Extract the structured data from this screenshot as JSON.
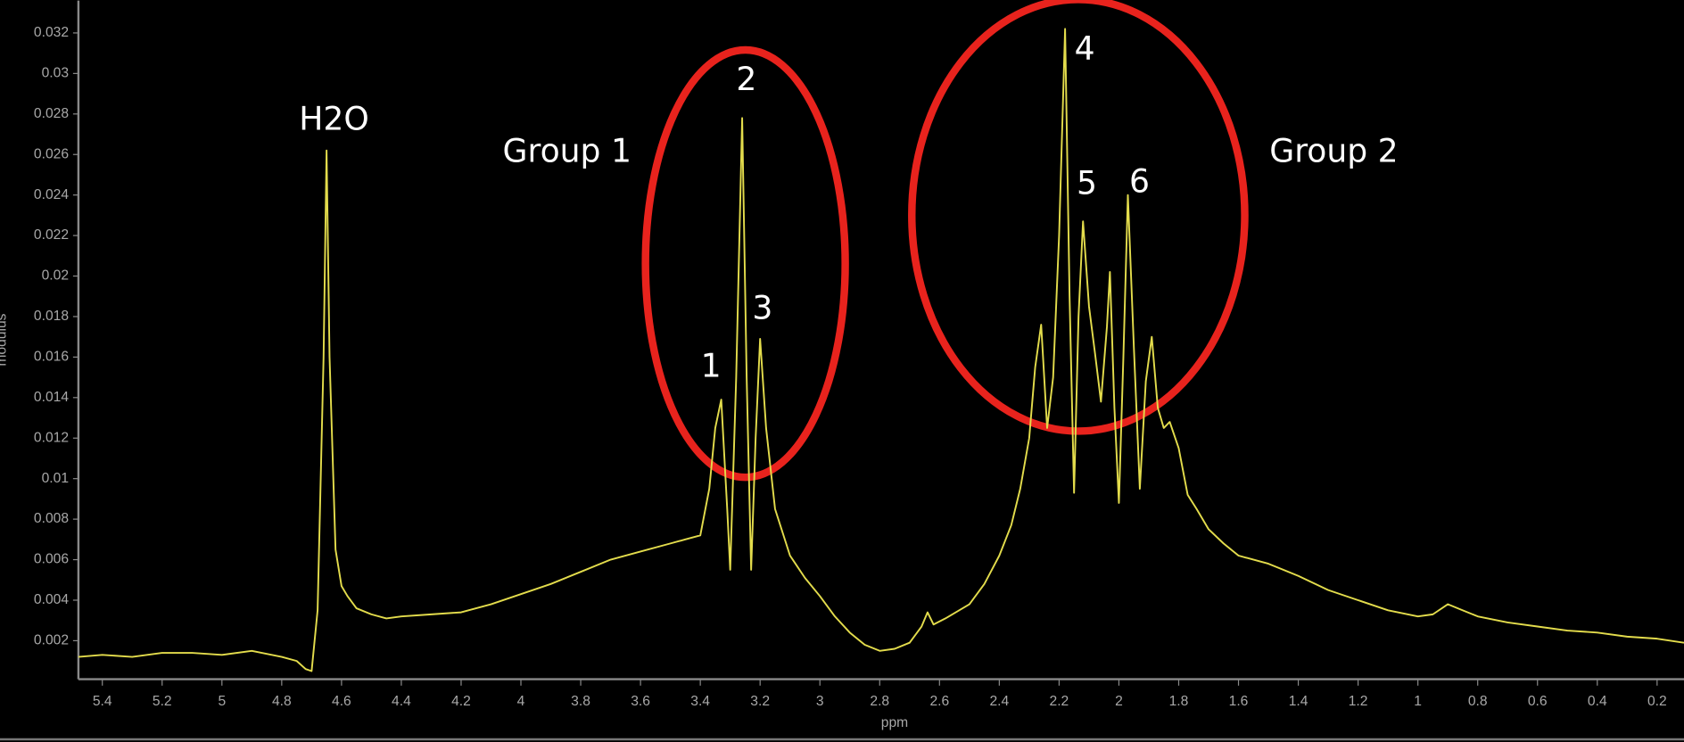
{
  "chart_data": {
    "type": "line",
    "xlabel": "ppm",
    "ylabel": "modulus",
    "xlim": [
      5.48,
      0.11
    ],
    "ylim": [
      0.0001,
      0.0336
    ],
    "xticks": [
      5.4,
      5.2,
      5,
      4.8,
      4.6,
      4.4,
      4.2,
      4,
      3.8,
      3.6,
      3.4,
      3.2,
      3,
      2.8,
      2.6,
      2.4,
      2.2,
      2,
      1.8,
      1.6,
      1.4,
      1.2,
      1,
      0.8,
      0.6,
      0.4,
      0.2
    ],
    "yticks": [
      0.002,
      0.004,
      0.006,
      0.008,
      0.01,
      0.012,
      0.014,
      0.016,
      0.018,
      0.02,
      0.022,
      0.024,
      0.026,
      0.028,
      0.03,
      0.032
    ],
    "color": "#e3dc4c",
    "x": [
      5.48,
      5.4,
      5.3,
      5.2,
      5.1,
      5,
      4.9,
      4.8,
      4.75,
      4.72,
      4.7,
      4.68,
      4.66,
      4.65,
      4.64,
      4.62,
      4.6,
      4.58,
      4.55,
      4.5,
      4.45,
      4.4,
      4.3,
      4.2,
      4.1,
      4,
      3.9,
      3.8,
      3.7,
      3.6,
      3.5,
      3.45,
      3.4,
      3.37,
      3.35,
      3.33,
      3.31,
      3.3,
      3.28,
      3.26,
      3.245,
      3.23,
      3.215,
      3.2,
      3.18,
      3.15,
      3.1,
      3.05,
      3,
      2.95,
      2.9,
      2.85,
      2.8,
      2.75,
      2.7,
      2.66,
      2.64,
      2.62,
      2.58,
      2.5,
      2.45,
      2.4,
      2.36,
      2.33,
      2.3,
      2.28,
      2.26,
      2.24,
      2.22,
      2.2,
      2.18,
      2.165,
      2.15,
      2.135,
      2.12,
      2.1,
      2.08,
      2.06,
      2.04,
      2.03,
      2.015,
      2,
      1.985,
      1.97,
      1.95,
      1.93,
      1.91,
      1.89,
      1.87,
      1.85,
      1.83,
      1.8,
      1.77,
      1.74,
      1.7,
      1.65,
      1.6,
      1.5,
      1.4,
      1.3,
      1.2,
      1.1,
      1,
      0.95,
      0.9,
      0.85,
      0.8,
      0.7,
      0.6,
      0.5,
      0.4,
      0.3,
      0.2,
      0.11
    ],
    "values": [
      0.0012,
      0.0013,
      0.0012,
      0.0014,
      0.0014,
      0.0013,
      0.0015,
      0.0012,
      0.001,
      0.0006,
      0.0005,
      0.0035,
      0.016,
      0.0262,
      0.016,
      0.0065,
      0.0047,
      0.0042,
      0.0036,
      0.0033,
      0.0031,
      0.0032,
      0.0033,
      0.0034,
      0.0038,
      0.0043,
      0.0048,
      0.0054,
      0.006,
      0.0064,
      0.0068,
      0.007,
      0.0072,
      0.0095,
      0.0125,
      0.0139,
      0.0085,
      0.0055,
      0.015,
      0.0278,
      0.015,
      0.0055,
      0.012,
      0.0169,
      0.0125,
      0.0085,
      0.0062,
      0.0051,
      0.0042,
      0.0032,
      0.0024,
      0.0018,
      0.0015,
      0.0016,
      0.0019,
      0.0027,
      0.0034,
      0.0028,
      0.0031,
      0.0038,
      0.0048,
      0.0062,
      0.0077,
      0.0095,
      0.012,
      0.0155,
      0.0176,
      0.0125,
      0.015,
      0.022,
      0.0322,
      0.019,
      0.0093,
      0.018,
      0.0227,
      0.0185,
      0.0162,
      0.0138,
      0.0175,
      0.0202,
      0.0135,
      0.0088,
      0.016,
      0.024,
      0.0165,
      0.0095,
      0.0148,
      0.017,
      0.0135,
      0.0125,
      0.0128,
      0.0115,
      0.0092,
      0.0085,
      0.0075,
      0.0068,
      0.0062,
      0.0058,
      0.0052,
      0.0045,
      0.004,
      0.0035,
      0.0032,
      0.0033,
      0.0038,
      0.0035,
      0.0032,
      0.0029,
      0.0027,
      0.0025,
      0.0024,
      0.0022,
      0.0021,
      0.0019
    ],
    "annotations": [
      "H2O",
      "Group 1",
      "2",
      "3",
      "1",
      "4",
      "5",
      "6",
      "Group 2"
    ]
  }
}
